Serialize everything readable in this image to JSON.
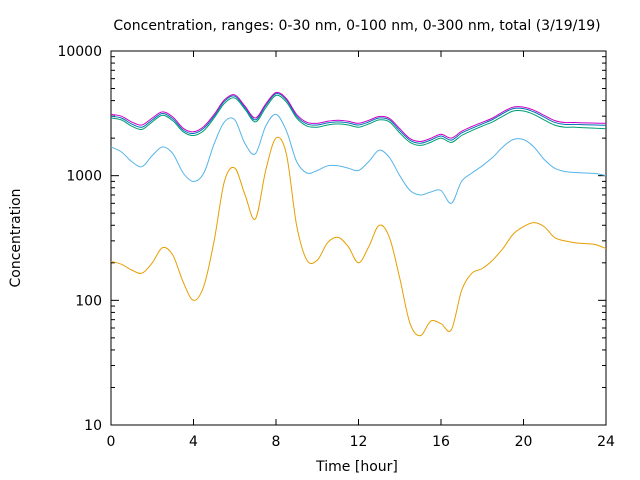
{
  "chart_data": {
    "type": "line",
    "title": "Concentration, ranges: 0-30 nm, 0-100 nm, 0-300 nm, total (3/19/19)",
    "xlabel": "Time [hour]",
    "ylabel": "Concentration",
    "xlim": [
      0,
      24
    ],
    "ylim": [
      10,
      10000
    ],
    "yscale": "log",
    "x_ticks": [
      0,
      4,
      8,
      12,
      16,
      20,
      24
    ],
    "x_tick_labels": [
      "0",
      "4",
      "8",
      "12",
      "16",
      "20",
      "24"
    ],
    "y_ticks": [
      10,
      100,
      1000,
      10000
    ],
    "y_tick_labels": [
      "10",
      "100",
      "1000",
      "10000"
    ],
    "grid": false,
    "legend": "none",
    "series": [
      {
        "color": "#e69f00",
        "x": [
          0,
          0.5,
          1,
          1.5,
          2,
          2.5,
          3,
          3.5,
          4,
          4.5,
          5,
          5.5,
          6,
          6.5,
          7,
          7.5,
          8,
          8.5,
          9,
          9.5,
          10,
          10.5,
          11,
          11.5,
          12,
          12.5,
          13,
          13.5,
          14,
          14.5,
          15,
          15.5,
          16,
          16.5,
          17,
          17.5,
          18,
          18.5,
          19,
          19.5,
          20,
          20.5,
          21,
          21.5,
          22,
          22.5,
          23,
          23.5,
          24
        ],
        "y": [
          205,
          195,
          175,
          165,
          200,
          265,
          230,
          140,
          100,
          130,
          300,
          900,
          1150,
          700,
          450,
          1100,
          2000,
          1500,
          400,
          210,
          210,
          290,
          320,
          270,
          200,
          270,
          400,
          320,
          150,
          65,
          52,
          68,
          65,
          58,
          120,
          165,
          180,
          210,
          260,
          340,
          390,
          420,
          390,
          320,
          300,
          290,
          285,
          280,
          260
        ]
      },
      {
        "color": "#56b4e9",
        "x": [
          0,
          0.5,
          1,
          1.5,
          2,
          2.5,
          3,
          3.5,
          4,
          4.5,
          5,
          5.5,
          6,
          6.5,
          7,
          7.5,
          8,
          8.5,
          9,
          9.5,
          10,
          10.5,
          11,
          11.5,
          12,
          12.5,
          13,
          13.5,
          14,
          14.5,
          15,
          15.5,
          16,
          16.5,
          17,
          17.5,
          18,
          18.5,
          19,
          19.5,
          20,
          20.5,
          21,
          21.5,
          22,
          22.5,
          23,
          23.5,
          24
        ],
        "y": [
          1700,
          1550,
          1300,
          1180,
          1450,
          1700,
          1500,
          1050,
          900,
          1050,
          1800,
          2700,
          2800,
          1800,
          1500,
          2500,
          3100,
          2300,
          1300,
          1050,
          1100,
          1200,
          1200,
          1150,
          1100,
          1300,
          1600,
          1400,
          1000,
          760,
          700,
          740,
          760,
          600,
          900,
          1050,
          1200,
          1400,
          1700,
          1950,
          1950,
          1700,
          1350,
          1150,
          1080,
          1060,
          1050,
          1040,
          1000
        ]
      },
      {
        "color": "#009e73",
        "x": [
          0,
          0.5,
          1,
          1.5,
          2,
          2.5,
          3,
          3.5,
          4,
          4.5,
          5,
          5.5,
          6,
          6.5,
          7,
          7.5,
          8,
          8.5,
          9,
          9.5,
          10,
          10.5,
          11,
          11.5,
          12,
          12.5,
          13,
          13.5,
          14,
          14.5,
          15,
          15.5,
          16,
          16.5,
          17,
          17.5,
          18,
          18.5,
          19,
          19.5,
          20,
          20.5,
          21,
          21.5,
          22,
          22.5,
          23,
          23.5,
          24
        ],
        "y": [
          2900,
          2800,
          2500,
          2350,
          2700,
          3050,
          2750,
          2250,
          2100,
          2300,
          2900,
          3800,
          4200,
          3400,
          2700,
          3500,
          4400,
          3900,
          2900,
          2500,
          2450,
          2550,
          2600,
          2550,
          2450,
          2600,
          2800,
          2700,
          2200,
          1850,
          1750,
          1850,
          2000,
          1850,
          2100,
          2300,
          2500,
          2700,
          3000,
          3300,
          3300,
          3100,
          2800,
          2550,
          2450,
          2450,
          2420,
          2400,
          2380
        ]
      },
      {
        "color": "#0072b2",
        "x": [
          0,
          0.5,
          1,
          1.5,
          2,
          2.5,
          3,
          3.5,
          4,
          4.5,
          5,
          5.5,
          6,
          6.5,
          7,
          7.5,
          8,
          8.5,
          9,
          9.5,
          10,
          10.5,
          11,
          11.5,
          12,
          12.5,
          13,
          13.5,
          14,
          14.5,
          15,
          15.5,
          16,
          16.5,
          17,
          17.5,
          18,
          18.5,
          19,
          19.5,
          20,
          20.5,
          21,
          21.5,
          22,
          22.5,
          23,
          23.5,
          24
        ],
        "y": [
          3000,
          2900,
          2600,
          2450,
          2800,
          3150,
          2850,
          2320,
          2180,
          2400,
          3000,
          3950,
          4350,
          3500,
          2800,
          3650,
          4550,
          4050,
          3000,
          2600,
          2550,
          2650,
          2700,
          2650,
          2550,
          2700,
          2900,
          2800,
          2300,
          1920,
          1820,
          1930,
          2080,
          1930,
          2200,
          2400,
          2600,
          2820,
          3150,
          3450,
          3450,
          3250,
          2950,
          2680,
          2580,
          2580,
          2560,
          2550,
          2540
        ]
      },
      {
        "color": "#cc00cc",
        "x": [
          0,
          0.5,
          1,
          1.5,
          2,
          2.5,
          3,
          3.5,
          4,
          4.5,
          5,
          5.5,
          6,
          6.5,
          7,
          7.5,
          8,
          8.5,
          9,
          9.5,
          10,
          10.5,
          11,
          11.5,
          12,
          12.5,
          13,
          13.5,
          14,
          14.5,
          15,
          15.5,
          16,
          16.5,
          17,
          17.5,
          18,
          18.5,
          19,
          19.5,
          20,
          20.5,
          21,
          21.5,
          22,
          22.5,
          23,
          23.5,
          24
        ],
        "y": [
          3100,
          3000,
          2700,
          2550,
          2900,
          3250,
          2950,
          2400,
          2250,
          2480,
          3100,
          4050,
          4450,
          3600,
          2900,
          3750,
          4650,
          4150,
          3100,
          2680,
          2630,
          2730,
          2780,
          2730,
          2630,
          2780,
          2980,
          2880,
          2380,
          1980,
          1880,
          1990,
          2150,
          2000,
          2270,
          2480,
          2680,
          2900,
          3250,
          3550,
          3550,
          3350,
          3050,
          2770,
          2670,
          2670,
          2650,
          2640,
          2630
        ]
      }
    ]
  }
}
